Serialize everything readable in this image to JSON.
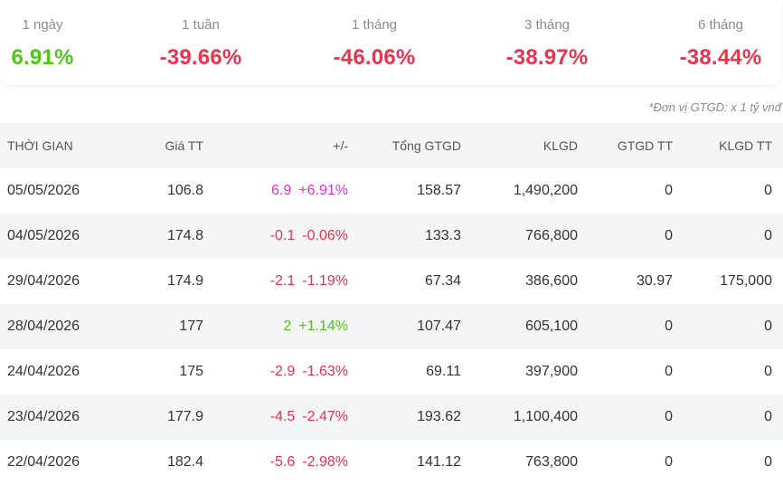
{
  "performance": [
    {
      "label": "1 ngày",
      "value": "6.91%",
      "trend": "up"
    },
    {
      "label": "1 tuần",
      "value": "-39.66%",
      "trend": "down"
    },
    {
      "label": "1 tháng",
      "value": "-46.06%",
      "trend": "down"
    },
    {
      "label": "3 tháng",
      "value": "-38.97%",
      "trend": "down"
    },
    {
      "label": "6 tháng",
      "value": "-38.44%",
      "trend": "down"
    }
  ],
  "unit_note": "*Đơn vị GTGD: x 1 tỷ vnđ",
  "table": {
    "headers": {
      "date": "THỜI GIAN",
      "price": "Giá TT",
      "change": "+/-",
      "total": "Tổng GTGD",
      "volume": "KLGD",
      "gtgd_tt": "GTGD TT",
      "klgd_tt": "KLGD TT"
    },
    "rows": [
      {
        "date": "05/05/2026",
        "price": "106.8",
        "chg_abs": "6.9",
        "chg_pct": "+6.91%",
        "color": "pink",
        "total": "158.57",
        "volume": "1,490,200",
        "gtgd_tt": "0",
        "klgd_tt": "0"
      },
      {
        "date": "04/05/2026",
        "price": "174.8",
        "chg_abs": "-0.1",
        "chg_pct": "-0.06%",
        "color": "red",
        "total": "133.3",
        "volume": "766,800",
        "gtgd_tt": "0",
        "klgd_tt": "0"
      },
      {
        "date": "29/04/2026",
        "price": "174.9",
        "chg_abs": "-2.1",
        "chg_pct": "-1.19%",
        "color": "red",
        "total": "67.34",
        "volume": "386,600",
        "gtgd_tt": "30.97",
        "klgd_tt": "175,000"
      },
      {
        "date": "28/04/2026",
        "price": "177",
        "chg_abs": "2",
        "chg_pct": "+1.14%",
        "color": "green",
        "total": "107.47",
        "volume": "605,100",
        "gtgd_tt": "0",
        "klgd_tt": "0"
      },
      {
        "date": "24/04/2026",
        "price": "175",
        "chg_abs": "-2.9",
        "chg_pct": "-1.63%",
        "color": "red",
        "total": "69.11",
        "volume": "397,900",
        "gtgd_tt": "0",
        "klgd_tt": "0"
      },
      {
        "date": "23/04/2026",
        "price": "177.9",
        "chg_abs": "-4.5",
        "chg_pct": "-2.47%",
        "color": "red",
        "total": "193.62",
        "volume": "1,100,400",
        "gtgd_tt": "0",
        "klgd_tt": "0"
      },
      {
        "date": "22/04/2026",
        "price": "182.4",
        "chg_abs": "-5.6",
        "chg_pct": "-2.98%",
        "color": "red",
        "total": "141.12",
        "volume": "763,800",
        "gtgd_tt": "0",
        "klgd_tt": "0"
      }
    ]
  },
  "colors": {
    "up": "#52c41a",
    "down": "#e8344e",
    "ceiling": "#e535c8",
    "header_bg": "#f3f5f7"
  }
}
